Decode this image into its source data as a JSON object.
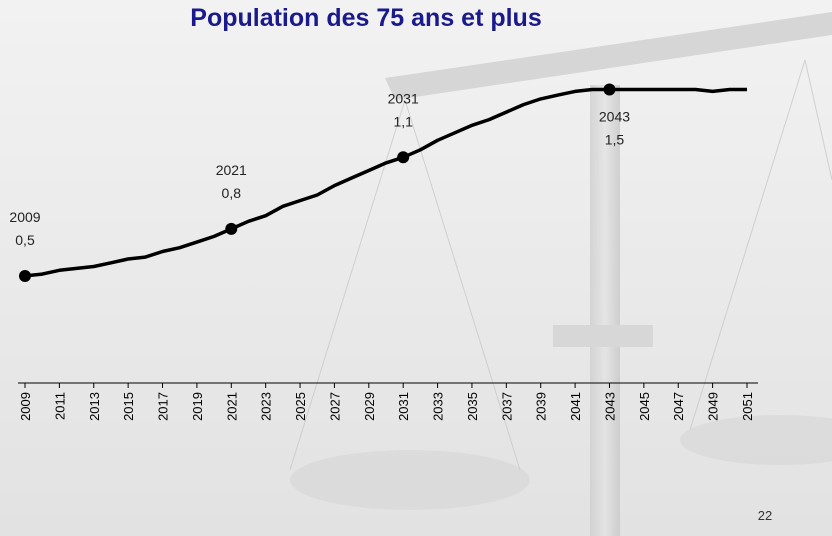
{
  "chart_data": {
    "type": "line",
    "title": "Population des 75 ans et plus",
    "page_number": "22",
    "x": [
      2009,
      2010,
      2011,
      2012,
      2013,
      2014,
      2015,
      2016,
      2017,
      2018,
      2019,
      2020,
      2021,
      2022,
      2023,
      2024,
      2025,
      2026,
      2027,
      2028,
      2029,
      2030,
      2031,
      2032,
      2033,
      2034,
      2035,
      2036,
      2037,
      2038,
      2039,
      2040,
      2041,
      2042,
      2043,
      2044,
      2045,
      2046,
      2047,
      2048,
      2049,
      2050,
      2051
    ],
    "values": [
      0.51,
      0.52,
      0.54,
      0.55,
      0.56,
      0.58,
      0.6,
      0.61,
      0.64,
      0.66,
      0.69,
      0.72,
      0.76,
      0.8,
      0.83,
      0.88,
      0.91,
      0.94,
      0.99,
      1.03,
      1.07,
      1.11,
      1.14,
      1.18,
      1.23,
      1.27,
      1.31,
      1.34,
      1.38,
      1.42,
      1.45,
      1.47,
      1.49,
      1.5,
      1.5,
      1.5,
      1.5,
      1.5,
      1.5,
      1.5,
      1.49,
      1.5,
      1.5
    ],
    "value_labels": [
      "0,5",
      null,
      null,
      null,
      null,
      null,
      null,
      null,
      null,
      null,
      null,
      null,
      "0,8",
      null,
      null,
      null,
      null,
      null,
      null,
      null,
      null,
      null,
      "1,1",
      null,
      null,
      null,
      null,
      null,
      null,
      null,
      null,
      null,
      null,
      null,
      "1,5",
      null,
      null,
      null,
      null,
      null,
      null,
      null,
      null
    ],
    "xlim": [
      2009,
      2051
    ],
    "xticks": [
      2009,
      2011,
      2013,
      2015,
      2017,
      2019,
      2021,
      2023,
      2025,
      2027,
      2029,
      2031,
      2033,
      2035,
      2037,
      2039,
      2041,
      2043,
      2045,
      2047,
      2049,
      2051
    ],
    "ylim": [
      0,
      1.8
    ],
    "color": "#000000",
    "title_color": "#1a1a8c"
  }
}
